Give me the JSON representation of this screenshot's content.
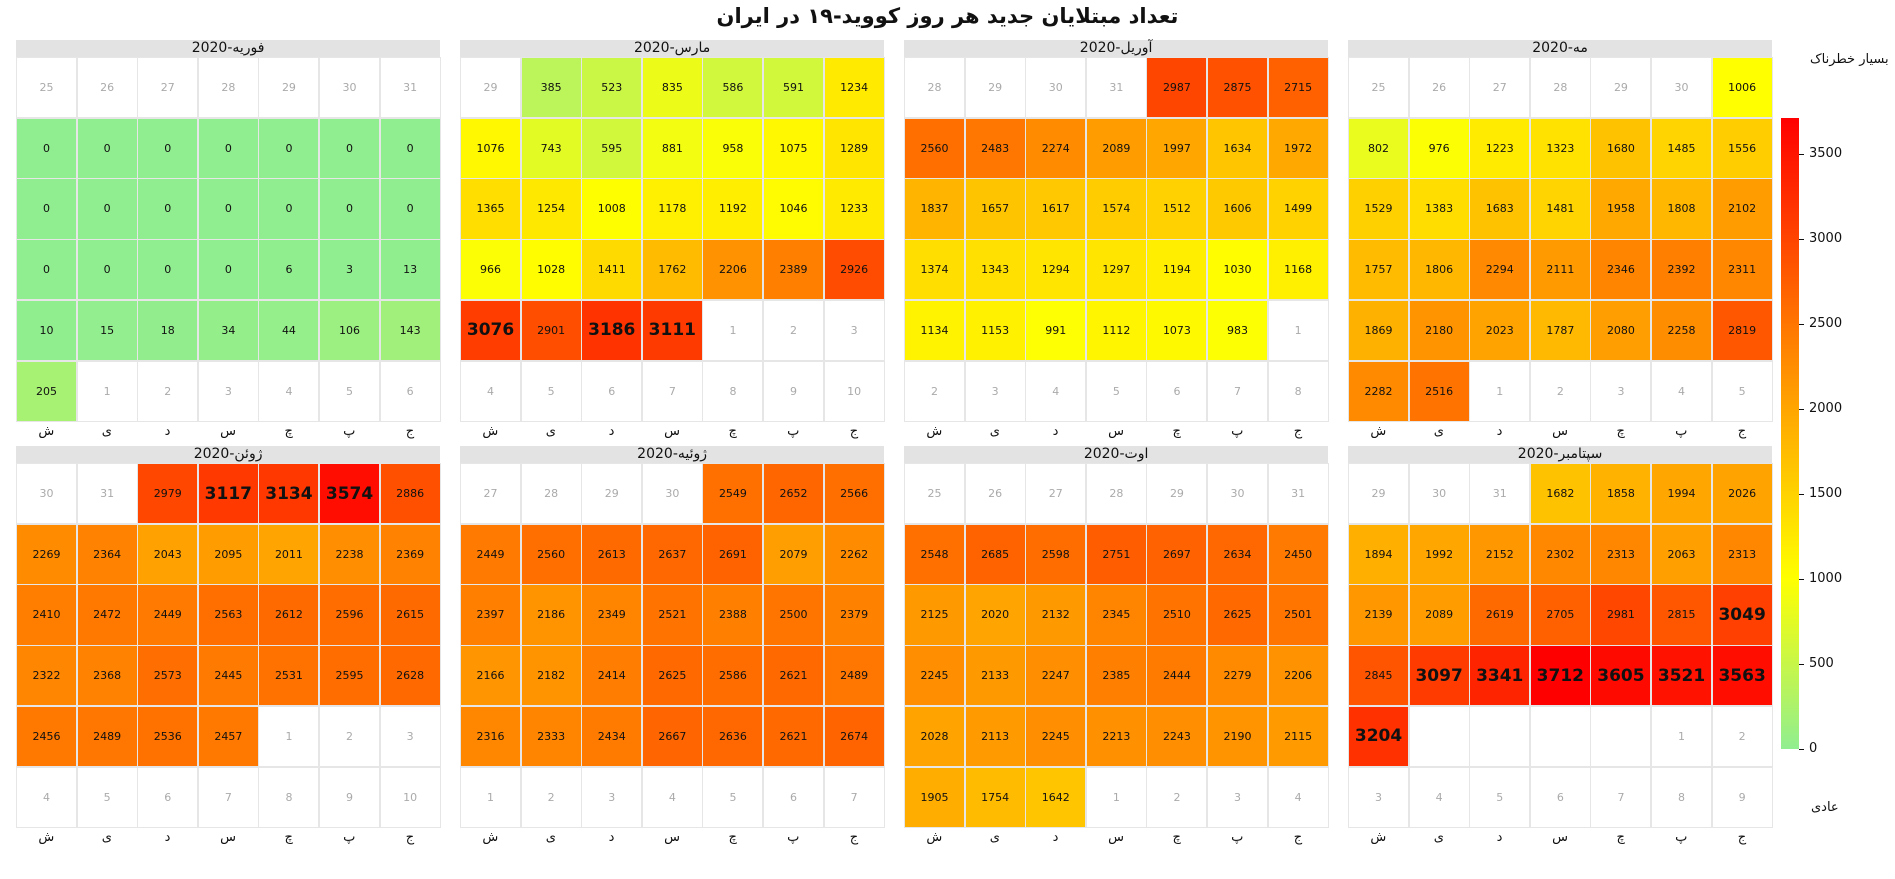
{
  "title": "تعداد مبتلایان جدید هر روز کووید-۱۹ در  ایران",
  "colorbar": {
    "top_label": "بسیار خطرناک",
    "bottom_label": "عادی",
    "min": 0,
    "max": 3712,
    "ticks": [
      0,
      500,
      1000,
      1500,
      2000,
      2500,
      3000,
      3500
    ],
    "colors": [
      "#90ee90",
      "#ffff00",
      "#ffa500",
      "#ff0000"
    ]
  },
  "chart_data": {
    "type": "heatmap",
    "title": "تعداد مبتلایان جدید هر روز کووید-۱۹ در  ایران",
    "weekdays": [
      "ش",
      "ی",
      "د",
      "س",
      "چ",
      "پ",
      "ج"
    ],
    "months": [
      {
        "name": "فوریه-2020",
        "weeks": [
          [
            "25",
            "26",
            "27",
            "28",
            "29",
            "30",
            "31"
          ],
          [
            0,
            0,
            0,
            0,
            0,
            0,
            0
          ],
          [
            0,
            0,
            0,
            0,
            0,
            0,
            0
          ],
          [
            0,
            0,
            0,
            0,
            6,
            3,
            13
          ],
          [
            10,
            15,
            18,
            34,
            44,
            106,
            143
          ],
          [
            205,
            "1",
            "2",
            "3",
            "4",
            "5",
            "6"
          ]
        ]
      },
      {
        "name": "مارس-2020",
        "weeks": [
          [
            "29",
            385,
            523,
            835,
            586,
            591,
            1234
          ],
          [
            1076,
            743,
            595,
            881,
            958,
            1075,
            1289
          ],
          [
            1365,
            1254,
            1008,
            1178,
            1192,
            1046,
            1233
          ],
          [
            966,
            1028,
            1411,
            1762,
            2206,
            2389,
            2926
          ],
          [
            3076,
            2901,
            3186,
            3111,
            "1",
            "2",
            "3"
          ],
          [
            "4",
            "5",
            "6",
            "7",
            "8",
            "9",
            "10"
          ]
        ]
      },
      {
        "name": "آوریل-2020",
        "weeks": [
          [
            "28",
            "29",
            "30",
            "31",
            2987,
            2875,
            2715
          ],
          [
            2560,
            2483,
            2274,
            2089,
            1997,
            1634,
            1972
          ],
          [
            1837,
            1657,
            1617,
            1574,
            1512,
            1606,
            1499
          ],
          [
            1374,
            1343,
            1294,
            1297,
            1194,
            1030,
            1168
          ],
          [
            1134,
            1153,
            991,
            1112,
            1073,
            983,
            "1"
          ],
          [
            "2",
            "3",
            "4",
            "5",
            "6",
            "7",
            "8"
          ]
        ]
      },
      {
        "name": "مه-2020",
        "weeks": [
          [
            "25",
            "26",
            "27",
            "28",
            "29",
            "30",
            1006
          ],
          [
            802,
            976,
            1223,
            1323,
            1680,
            1485,
            1556
          ],
          [
            1529,
            1383,
            1683,
            1481,
            1958,
            1808,
            2102
          ],
          [
            1757,
            1806,
            2294,
            2111,
            2346,
            2392,
            2311
          ],
          [
            1869,
            2180,
            2023,
            1787,
            2080,
            2258,
            2819
          ],
          [
            2282,
            2516,
            "1",
            "2",
            "3",
            "4",
            "5"
          ]
        ]
      },
      {
        "name": "ژوئن-2020",
        "weeks": [
          [
            "30",
            "31",
            2979,
            3117,
            3134,
            3574,
            2886
          ],
          [
            2269,
            2364,
            2043,
            2095,
            2011,
            2238,
            2369
          ],
          [
            2410,
            2472,
            2449,
            2563,
            2612,
            2596,
            2615
          ],
          [
            2322,
            2368,
            2573,
            2445,
            2531,
            2595,
            2628
          ],
          [
            2456,
            2489,
            2536,
            2457,
            "1",
            "2",
            "3"
          ],
          [
            "4",
            "5",
            "6",
            "7",
            "8",
            "9",
            "10"
          ]
        ]
      },
      {
        "name": "ژوئیه-2020",
        "weeks": [
          [
            "27",
            "28",
            "29",
            "30",
            2549,
            2652,
            2566
          ],
          [
            2449,
            2560,
            2613,
            2637,
            2691,
            2079,
            2262
          ],
          [
            2397,
            2186,
            2349,
            2521,
            2388,
            2500,
            2379
          ],
          [
            2166,
            2182,
            2414,
            2625,
            2586,
            2621,
            2489
          ],
          [
            2316,
            2333,
            2434,
            2667,
            2636,
            2621,
            2674
          ],
          [
            "1",
            "2",
            "3",
            "4",
            "5",
            "6",
            "7"
          ]
        ]
      },
      {
        "name": "اوت-2020",
        "weeks": [
          [
            "25",
            "26",
            "27",
            "28",
            "29",
            "30",
            "31"
          ],
          [
            2548,
            2685,
            2598,
            2751,
            2697,
            2634,
            2450
          ],
          [
            2125,
            2020,
            2132,
            2345,
            2510,
            2625,
            2501
          ],
          [
            2245,
            2133,
            2247,
            2385,
            2444,
            2279,
            2206
          ],
          [
            2028,
            2113,
            2245,
            2213,
            2243,
            2190,
            2115
          ],
          [
            1905,
            1754,
            1642,
            "1",
            "2",
            "3",
            "4"
          ]
        ]
      },
      {
        "name": "سپتامبر-2020",
        "weeks": [
          [
            "29",
            "30",
            "31",
            1682,
            1858,
            1994,
            2026
          ],
          [
            1894,
            1992,
            2152,
            2302,
            2313,
            2063,
            2313
          ],
          [
            2139,
            2089,
            2619,
            2705,
            2981,
            2815,
            3049
          ],
          [
            2845,
            3097,
            3341,
            3712,
            3605,
            3521,
            3563
          ],
          [
            3204,
            "",
            "",
            "",
            "",
            "1",
            "2"
          ],
          [
            "3",
            "4",
            "5",
            "6",
            "7",
            "8",
            "9"
          ]
        ]
      }
    ]
  }
}
